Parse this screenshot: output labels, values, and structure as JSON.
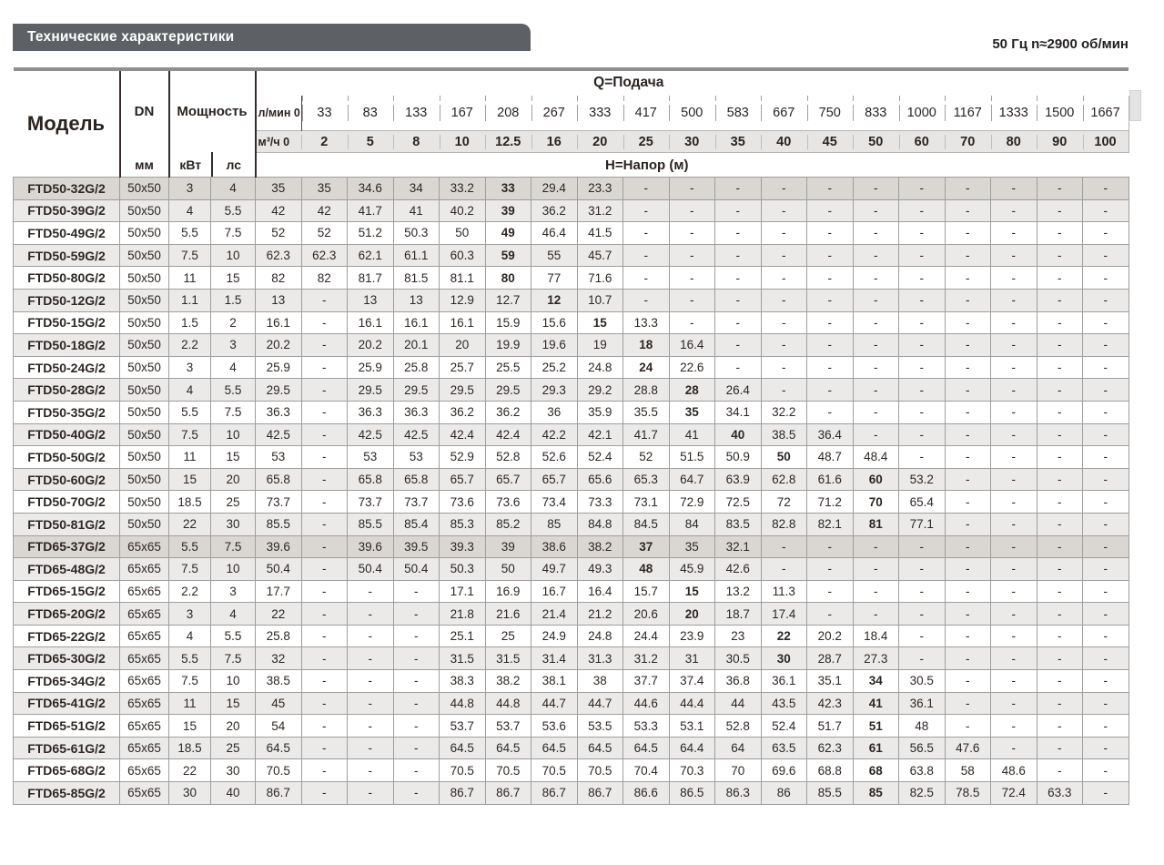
{
  "page": {
    "banner_title": "Технические характеристики",
    "frequency_note": "50 Гц  n≈2900 об/мин"
  },
  "table": {
    "col_headers": {
      "model": "Модель",
      "dn": "DN",
      "dn_unit": "мм",
      "power": "Мощность",
      "power_kw": "кВт",
      "power_hp": "лс",
      "flow_title": "Q=Подача",
      "flow_lmin_label": "л/мин 0",
      "flow_m3h_label": "м³/ч 0",
      "head_title": "H=Напор (м)",
      "flow_lmin": [
        "33",
        "83",
        "133",
        "167",
        "208",
        "267",
        "333",
        "417",
        "500",
        "583",
        "667",
        "750",
        "833",
        "1000",
        "1167",
        "1333",
        "1500",
        "1667"
      ],
      "flow_m3h": [
        "2",
        "5",
        "8",
        "10",
        "12.5",
        "16",
        "20",
        "25",
        "30",
        "35",
        "40",
        "45",
        "50",
        "60",
        "70",
        "80",
        "90",
        "100"
      ]
    },
    "rows": [
      {
        "model": "FTD50-32G/2",
        "dn": "50x50",
        "kw": "3",
        "hp": "4",
        "shade": "dark",
        "bold": 5,
        "values": [
          "35",
          "35",
          "34.6",
          "34",
          "33.2",
          "33",
          "29.4",
          "23.3",
          "-",
          "-",
          "-",
          "-",
          "-",
          "-",
          "-",
          "-",
          "-",
          "-",
          "-"
        ]
      },
      {
        "model": "FTD50-39G/2",
        "dn": "50x50",
        "kw": "4",
        "hp": "5.5",
        "shade": "gray",
        "bold": 5,
        "values": [
          "42",
          "42",
          "41.7",
          "41",
          "40.2",
          "39",
          "36.2",
          "31.2",
          "-",
          "-",
          "-",
          "-",
          "-",
          "-",
          "-",
          "-",
          "-",
          "-",
          "-"
        ]
      },
      {
        "model": "FTD50-49G/2",
        "dn": "50x50",
        "kw": "5.5",
        "hp": "7.5",
        "shade": "white",
        "bold": 5,
        "values": [
          "52",
          "52",
          "51.2",
          "50.3",
          "50",
          "49",
          "46.4",
          "41.5",
          "-",
          "-",
          "-",
          "-",
          "-",
          "-",
          "-",
          "-",
          "-",
          "-",
          "-"
        ]
      },
      {
        "model": "FTD50-59G/2",
        "dn": "50x50",
        "kw": "7.5",
        "hp": "10",
        "shade": "gray",
        "bold": 5,
        "values": [
          "62.3",
          "62.3",
          "62.1",
          "61.1",
          "60.3",
          "59",
          "55",
          "45.7",
          "-",
          "-",
          "-",
          "-",
          "-",
          "-",
          "-",
          "-",
          "-",
          "-",
          "-"
        ]
      },
      {
        "model": "FTD50-80G/2",
        "dn": "50x50",
        "kw": "11",
        "hp": "15",
        "shade": "white",
        "bold": 5,
        "values": [
          "82",
          "82",
          "81.7",
          "81.5",
          "81.1",
          "80",
          "77",
          "71.6",
          "-",
          "-",
          "-",
          "-",
          "-",
          "-",
          "-",
          "-",
          "-",
          "-",
          "-"
        ]
      },
      {
        "model": "FTD50-12G/2",
        "dn": "50x50",
        "kw": "1.1",
        "hp": "1.5",
        "shade": "gray",
        "bold": 6,
        "values": [
          "13",
          "-",
          "13",
          "13",
          "12.9",
          "12.7",
          "12",
          "10.7",
          "-",
          "-",
          "-",
          "-",
          "-",
          "-",
          "-",
          "-",
          "-",
          "-",
          "-"
        ]
      },
      {
        "model": "FTD50-15G/2",
        "dn": "50x50",
        "kw": "1.5",
        "hp": "2",
        "shade": "white",
        "bold": 7,
        "values": [
          "16.1",
          "-",
          "16.1",
          "16.1",
          "16.1",
          "15.9",
          "15.6",
          "15",
          "13.3",
          "-",
          "-",
          "-",
          "-",
          "-",
          "-",
          "-",
          "-",
          "-",
          "-"
        ]
      },
      {
        "model": "FTD50-18G/2",
        "dn": "50x50",
        "kw": "2.2",
        "hp": "3",
        "shade": "gray",
        "bold": 8,
        "values": [
          "20.2",
          "-",
          "20.2",
          "20.1",
          "20",
          "19.9",
          "19.6",
          "19",
          "18",
          "16.4",
          "-",
          "-",
          "-",
          "-",
          "-",
          "-",
          "-",
          "-",
          "-"
        ]
      },
      {
        "model": "FTD50-24G/2",
        "dn": "50x50",
        "kw": "3",
        "hp": "4",
        "shade": "white",
        "bold": 8,
        "values": [
          "25.9",
          "-",
          "25.9",
          "25.8",
          "25.7",
          "25.5",
          "25.2",
          "24.8",
          "24",
          "22.6",
          "-",
          "-",
          "-",
          "-",
          "-",
          "-",
          "-",
          "-",
          "-"
        ]
      },
      {
        "model": "FTD50-28G/2",
        "dn": "50x50",
        "kw": "4",
        "hp": "5.5",
        "shade": "gray",
        "bold": 9,
        "values": [
          "29.5",
          "-",
          "29.5",
          "29.5",
          "29.5",
          "29.5",
          "29.3",
          "29.2",
          "28.8",
          "28",
          "26.4",
          "-",
          "-",
          "-",
          "-",
          "-",
          "-",
          "-",
          "-"
        ]
      },
      {
        "model": "FTD50-35G/2",
        "dn": "50x50",
        "kw": "5.5",
        "hp": "7.5",
        "shade": "white",
        "bold": 9,
        "values": [
          "36.3",
          "-",
          "36.3",
          "36.3",
          "36.2",
          "36.2",
          "36",
          "35.9",
          "35.5",
          "35",
          "34.1",
          "32.2",
          "-",
          "-",
          "-",
          "-",
          "-",
          "-",
          "-"
        ]
      },
      {
        "model": "FTD50-40G/2",
        "dn": "50x50",
        "kw": "7.5",
        "hp": "10",
        "shade": "gray",
        "bold": 10,
        "values": [
          "42.5",
          "-",
          "42.5",
          "42.5",
          "42.4",
          "42.4",
          "42.2",
          "42.1",
          "41.7",
          "41",
          "40",
          "38.5",
          "36.4",
          "-",
          "-",
          "-",
          "-",
          "-",
          "-"
        ]
      },
      {
        "model": "FTD50-50G/2",
        "dn": "50x50",
        "kw": "11",
        "hp": "15",
        "shade": "white",
        "bold": 11,
        "values": [
          "53",
          "-",
          "53",
          "53",
          "52.9",
          "52.8",
          "52.6",
          "52.4",
          "52",
          "51.5",
          "50.9",
          "50",
          "48.7",
          "48.4",
          "-",
          "-",
          "-",
          "-",
          "-"
        ]
      },
      {
        "model": "FTD50-60G/2",
        "dn": "50x50",
        "kw": "15",
        "hp": "20",
        "shade": "gray",
        "bold": 13,
        "values": [
          "65.8",
          "-",
          "65.8",
          "65.8",
          "65.7",
          "65.7",
          "65.7",
          "65.6",
          "65.3",
          "64.7",
          "63.9",
          "62.8",
          "61.6",
          "60",
          "53.2",
          "-",
          "-",
          "-",
          "-"
        ]
      },
      {
        "model": "FTD50-70G/2",
        "dn": "50x50",
        "kw": "18.5",
        "hp": "25",
        "shade": "white",
        "bold": 13,
        "values": [
          "73.7",
          "-",
          "73.7",
          "73.7",
          "73.6",
          "73.6",
          "73.4",
          "73.3",
          "73.1",
          "72.9",
          "72.5",
          "72",
          "71.2",
          "70",
          "65.4",
          "-",
          "-",
          "-",
          "-"
        ]
      },
      {
        "model": "FTD50-81G/2",
        "dn": "50x50",
        "kw": "22",
        "hp": "30",
        "shade": "gray",
        "bold": 13,
        "values": [
          "85.5",
          "-",
          "85.5",
          "85.4",
          "85.3",
          "85.2",
          "85",
          "84.8",
          "84.5",
          "84",
          "83.5",
          "82.8",
          "82.1",
          "81",
          "77.1",
          "-",
          "-",
          "-",
          "-"
        ]
      },
      {
        "model": "FTD65-37G/2",
        "dn": "65x65",
        "kw": "5.5",
        "hp": "7.5",
        "shade": "dark",
        "bold": 8,
        "values": [
          "39.6",
          "-",
          "39.6",
          "39.5",
          "39.3",
          "39",
          "38.6",
          "38.2",
          "37",
          "35",
          "32.1",
          "-",
          "-",
          "-",
          "-",
          "-",
          "-",
          "-",
          "-"
        ]
      },
      {
        "model": "FTD65-48G/2",
        "dn": "65x65",
        "kw": "7.5",
        "hp": "10",
        "shade": "gray",
        "bold": 8,
        "values": [
          "50.4",
          "-",
          "50.4",
          "50.4",
          "50.3",
          "50",
          "49.7",
          "49.3",
          "48",
          "45.9",
          "42.6",
          "-",
          "-",
          "-",
          "-",
          "-",
          "-",
          "-",
          "-"
        ]
      },
      {
        "model": "FTD65-15G/2",
        "dn": "65x65",
        "kw": "2.2",
        "hp": "3",
        "shade": "white",
        "bold": 9,
        "values": [
          "17.7",
          "-",
          "-",
          "-",
          "17.1",
          "16.9",
          "16.7",
          "16.4",
          "15.7",
          "15",
          "13.2",
          "11.3",
          "-",
          "-",
          "-",
          "-",
          "-",
          "-",
          "-"
        ]
      },
      {
        "model": "FTD65-20G/2",
        "dn": "65x65",
        "kw": "3",
        "hp": "4",
        "shade": "gray",
        "bold": 9,
        "values": [
          "22",
          "-",
          "-",
          "-",
          "21.8",
          "21.6",
          "21.4",
          "21.2",
          "20.6",
          "20",
          "18.7",
          "17.4",
          "-",
          "-",
          "-",
          "-",
          "-",
          "-",
          "-"
        ]
      },
      {
        "model": "FTD65-22G/2",
        "dn": "65x65",
        "kw": "4",
        "hp": "5.5",
        "shade": "white",
        "bold": 11,
        "values": [
          "25.8",
          "-",
          "-",
          "-",
          "25.1",
          "25",
          "24.9",
          "24.8",
          "24.4",
          "23.9",
          "23",
          "22",
          "20.2",
          "18.4",
          "-",
          "-",
          "-",
          "-",
          "-"
        ]
      },
      {
        "model": "FTD65-30G/2",
        "dn": "65x65",
        "kw": "5.5",
        "hp": "7.5",
        "shade": "gray",
        "bold": 11,
        "values": [
          "32",
          "-",
          "-",
          "-",
          "31.5",
          "31.5",
          "31.4",
          "31.3",
          "31.2",
          "31",
          "30.5",
          "30",
          "28.7",
          "27.3",
          "-",
          "-",
          "-",
          "-",
          "-"
        ]
      },
      {
        "model": "FTD65-34G/2",
        "dn": "65x65",
        "kw": "7.5",
        "hp": "10",
        "shade": "white",
        "bold": 13,
        "values": [
          "38.5",
          "-",
          "-",
          "-",
          "38.3",
          "38.2",
          "38.1",
          "38",
          "37.7",
          "37.4",
          "36.8",
          "36.1",
          "35.1",
          "34",
          "30.5",
          "-",
          "-",
          "-",
          "-"
        ]
      },
      {
        "model": "FTD65-41G/2",
        "dn": "65x65",
        "kw": "11",
        "hp": "15",
        "shade": "gray",
        "bold": 13,
        "values": [
          "45",
          "-",
          "-",
          "-",
          "44.8",
          "44.8",
          "44.7",
          "44.7",
          "44.6",
          "44.4",
          "44",
          "43.5",
          "42.3",
          "41",
          "36.1",
          "-",
          "-",
          "-",
          "-"
        ]
      },
      {
        "model": "FTD65-51G/2",
        "dn": "65x65",
        "kw": "15",
        "hp": "20",
        "shade": "white",
        "bold": 13,
        "values": [
          "54",
          "-",
          "-",
          "-",
          "53.7",
          "53.7",
          "53.6",
          "53.5",
          "53.3",
          "53.1",
          "52.8",
          "52.4",
          "51.7",
          "51",
          "48",
          "-",
          "-",
          "-",
          "-"
        ]
      },
      {
        "model": "FTD65-61G/2",
        "dn": "65x65",
        "kw": "18.5",
        "hp": "25",
        "shade": "gray",
        "bold": 13,
        "values": [
          "64.5",
          "-",
          "-",
          "-",
          "64.5",
          "64.5",
          "64.5",
          "64.5",
          "64.5",
          "64.4",
          "64",
          "63.5",
          "62.3",
          "61",
          "56.5",
          "47.6",
          "-",
          "-",
          "-"
        ]
      },
      {
        "model": "FTD65-68G/2",
        "dn": "65x65",
        "kw": "22",
        "hp": "30",
        "shade": "white",
        "bold": 13,
        "values": [
          "70.5",
          "-",
          "-",
          "-",
          "70.5",
          "70.5",
          "70.5",
          "70.5",
          "70.4",
          "70.3",
          "70",
          "69.6",
          "68.8",
          "68",
          "63.8",
          "58",
          "48.6",
          "-",
          "-"
        ]
      },
      {
        "model": "FTD65-85G/2",
        "dn": "65x65",
        "kw": "30",
        "hp": "40",
        "shade": "gray",
        "bold": 13,
        "values": [
          "86.7",
          "-",
          "-",
          "-",
          "86.7",
          "86.7",
          "86.7",
          "86.7",
          "86.6",
          "86.5",
          "86.3",
          "86",
          "85.5",
          "85",
          "82.5",
          "78.5",
          "72.4",
          "63.3",
          "-"
        ]
      }
    ]
  }
}
